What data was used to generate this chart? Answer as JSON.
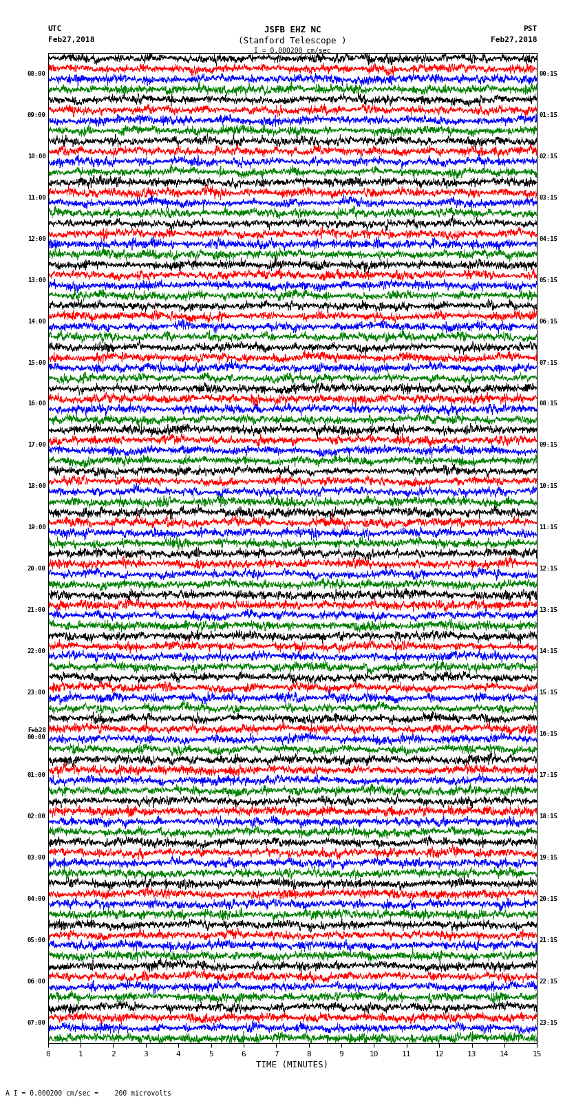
{
  "title_line1": "JSFB EHZ NC",
  "title_line2": "(Stanford Telescope )",
  "scale_label": "I = 0.000200 cm/sec",
  "footer_label": "A I = 0.000200 cm/sec =    200 microvolts",
  "utc_label": "UTC",
  "utc_date": "Feb27,2018",
  "pst_label": "PST",
  "pst_date": "Feb27,2018",
  "xlabel": "TIME (MINUTES)",
  "left_times": [
    "08:00",
    "09:00",
    "10:00",
    "11:00",
    "12:00",
    "13:00",
    "14:00",
    "15:00",
    "16:00",
    "17:00",
    "18:00",
    "19:00",
    "20:00",
    "21:00",
    "22:00",
    "23:00",
    "Feb28\n00:00",
    "01:00",
    "02:00",
    "03:00",
    "04:00",
    "05:00",
    "06:00",
    "07:00"
  ],
  "right_times": [
    "00:15",
    "01:15",
    "02:15",
    "03:15",
    "04:15",
    "05:15",
    "06:15",
    "07:15",
    "08:15",
    "09:15",
    "10:15",
    "11:15",
    "12:15",
    "13:15",
    "14:15",
    "15:15",
    "16:15",
    "17:15",
    "18:15",
    "19:15",
    "20:15",
    "21:15",
    "22:15",
    "23:15"
  ],
  "colors": [
    "black",
    "red",
    "blue",
    "green"
  ],
  "n_rows": 24,
  "traces_per_row": 4,
  "n_points": 4500,
  "x_min": 0,
  "x_max": 15,
  "bg_color": "white",
  "seed": 42
}
